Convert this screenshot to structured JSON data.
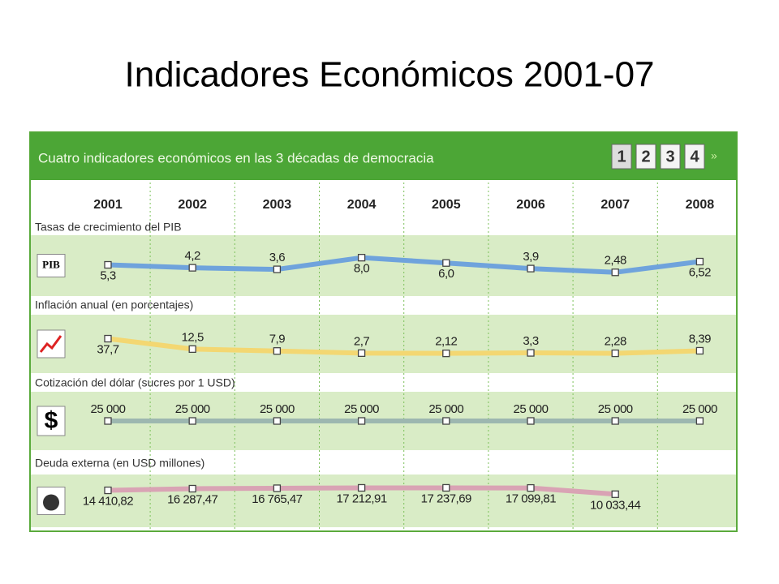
{
  "title": "Indicadores Económicos 2001-07",
  "panel_title": "Cuatro indicadores económicos en las 3 décadas de democracia",
  "pages": [
    "1",
    "2",
    "3",
    "4"
  ],
  "icon_texts": [
    "PIB",
    "$"
  ],
  "chart_data": [
    {
      "type": "line",
      "title": "Tasas de crecimiento del PIB",
      "categories": [
        "2001",
        "2002",
        "2003",
        "2004",
        "2005",
        "2006",
        "2007",
        "2008"
      ],
      "values": [
        5.3,
        4.2,
        3.6,
        8.0,
        6.0,
        3.9,
        2.48,
        6.52
      ],
      "value_labels": [
        "5,3",
        "4,2",
        "3,6",
        "8,0",
        "6,0",
        "3,9",
        "2,48",
        "6,52"
      ],
      "color": "#6fa3dc",
      "ylim": [
        -4,
        14
      ]
    },
    {
      "type": "line",
      "title": "Inflación anual (en porcentajes)",
      "values": [
        37.7,
        12.5,
        7.9,
        2.7,
        2.12,
        3.3,
        2.28,
        8.39
      ],
      "value_labels": [
        "37,7",
        "12,5",
        "7,9",
        "2,7",
        "2,12",
        "3,3",
        "2,28",
        "8,39"
      ],
      "color": "#f3d772",
      "ylim": [
        -30,
        80
      ]
    },
    {
      "type": "line",
      "title": "Cotización del dólar (sucres por 1 USD)",
      "values": [
        25000,
        25000,
        25000,
        25000,
        25000,
        25000,
        25000,
        25000
      ],
      "value_labels": [
        "25 000",
        "25 000",
        "25 000",
        "25 000",
        "25 000",
        "25 000",
        "25 000",
        "25 000"
      ],
      "color": "#9db7b0",
      "ylim": [
        0,
        50000
      ]
    },
    {
      "type": "line",
      "title": "Deuda externa (en USD millones)",
      "values": [
        14410.82,
        16287.47,
        16765.47,
        17212.91,
        17237.69,
        17099.81,
        10033.44,
        null
      ],
      "value_labels": [
        "14 410,82",
        "16 287,47",
        "16 765,47",
        "17 212,91",
        "17 237,69",
        "17 099,81",
        "10 033,44",
        null
      ],
      "color": "#d9a3b4",
      "ylim": [
        -20000,
        25000
      ]
    }
  ]
}
